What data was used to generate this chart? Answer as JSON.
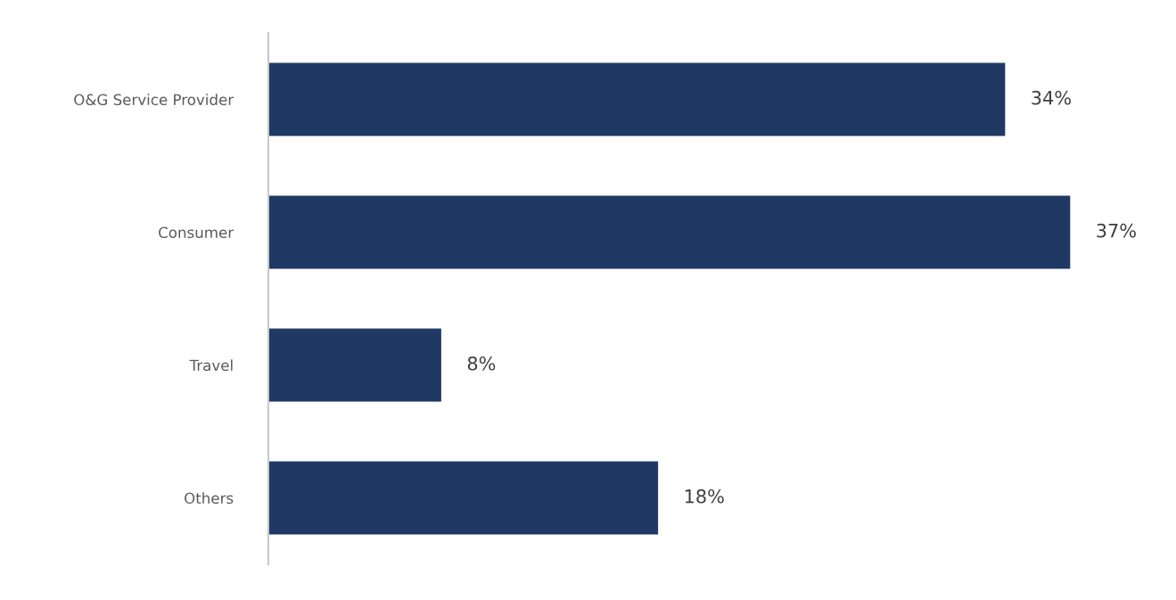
{
  "chart_data": {
    "type": "bar",
    "orientation": "horizontal",
    "categories": [
      "O&G Service Provider",
      "Consumer",
      "Travel",
      "Others"
    ],
    "values": [
      34,
      37,
      8,
      18
    ],
    "value_labels": [
      "34%",
      "37%",
      "8%",
      "18%"
    ],
    "color": "#203864",
    "grid": false,
    "legend": false
  }
}
